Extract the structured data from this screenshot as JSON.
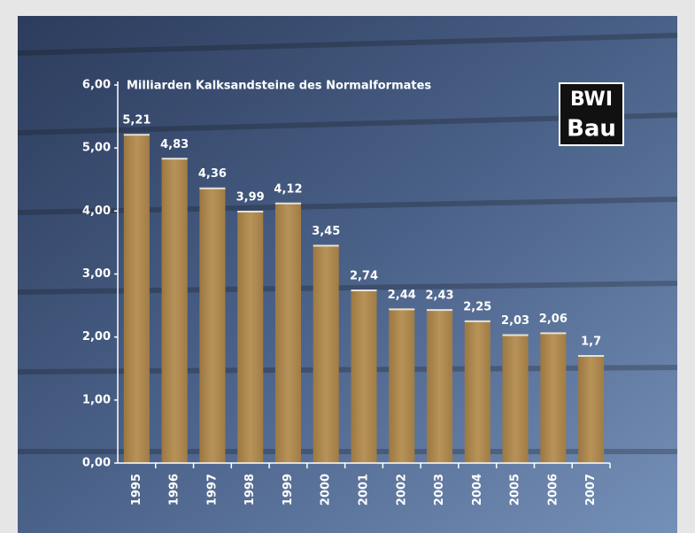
{
  "chart_data": {
    "type": "bar",
    "title": "Milliarden Kalksandsteine des Normalformates",
    "annotations": [
      "BWI",
      "Bau"
    ],
    "categories": [
      "1995",
      "1996",
      "1997",
      "1998",
      "1999",
      "2000",
      "2001",
      "2002",
      "2003",
      "2004",
      "2005",
      "2006",
      "2007"
    ],
    "values": [
      5.21,
      4.83,
      4.36,
      3.99,
      4.12,
      3.45,
      2.74,
      2.44,
      2.43,
      2.25,
      2.03,
      2.06,
      1.7
    ],
    "value_labels": [
      "5,21",
      "4,83",
      "4,36",
      "3,99",
      "4,12",
      "3,45",
      "2,74",
      "2,44",
      "2,43",
      "2,25",
      "2,03",
      "2,06",
      "1,7"
    ],
    "color": "#b08a50",
    "ylim": [
      0,
      6
    ],
    "yticks": [
      {
        "value": 0,
        "label": "0,00"
      },
      {
        "value": 1,
        "label": "1,00"
      },
      {
        "value": 2,
        "label": "2,00"
      },
      {
        "value": 3,
        "label": "3,00"
      },
      {
        "value": 4,
        "label": "4,00"
      },
      {
        "value": 5,
        "label": "5,00"
      },
      {
        "value": 6,
        "label": "6,00"
      }
    ],
    "grid": false
  }
}
